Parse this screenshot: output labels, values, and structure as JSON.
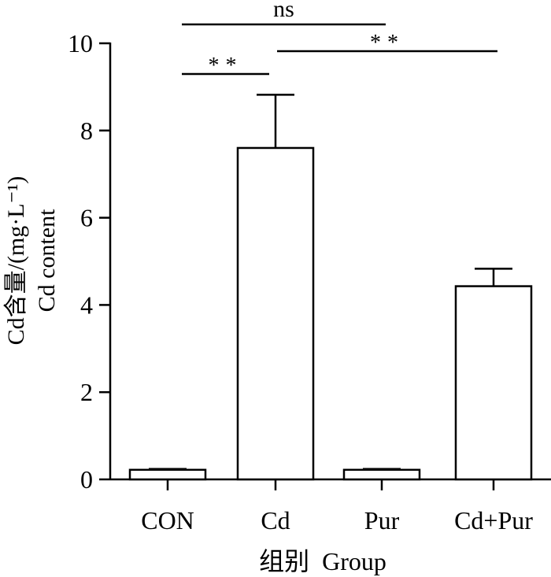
{
  "chart_data": {
    "type": "bar",
    "categories": [
      "CON",
      "Cd",
      "Pur",
      "Cd+Pur"
    ],
    "values": [
      0.22,
      7.6,
      0.22,
      4.43
    ],
    "errors": [
      0.02,
      1.22,
      0.02,
      0.4
    ],
    "xlabel": "组别  Group",
    "ylabel_line1": "Cd含量/(mg·L⁻¹)",
    "ylabel_line2": "Cd content",
    "ylim": [
      0,
      10
    ],
    "yticks": [
      "0",
      "2",
      "4",
      "6",
      "8",
      "10"
    ],
    "significance": [
      {
        "from": 0,
        "to": 2,
        "label": "ns"
      },
      {
        "from": 0,
        "to": 1,
        "label": "**"
      },
      {
        "from": 1,
        "to": 3,
        "label": "**"
      }
    ],
    "grid": false,
    "bar_fill": "#ffffff",
    "bar_stroke": "#000000"
  }
}
